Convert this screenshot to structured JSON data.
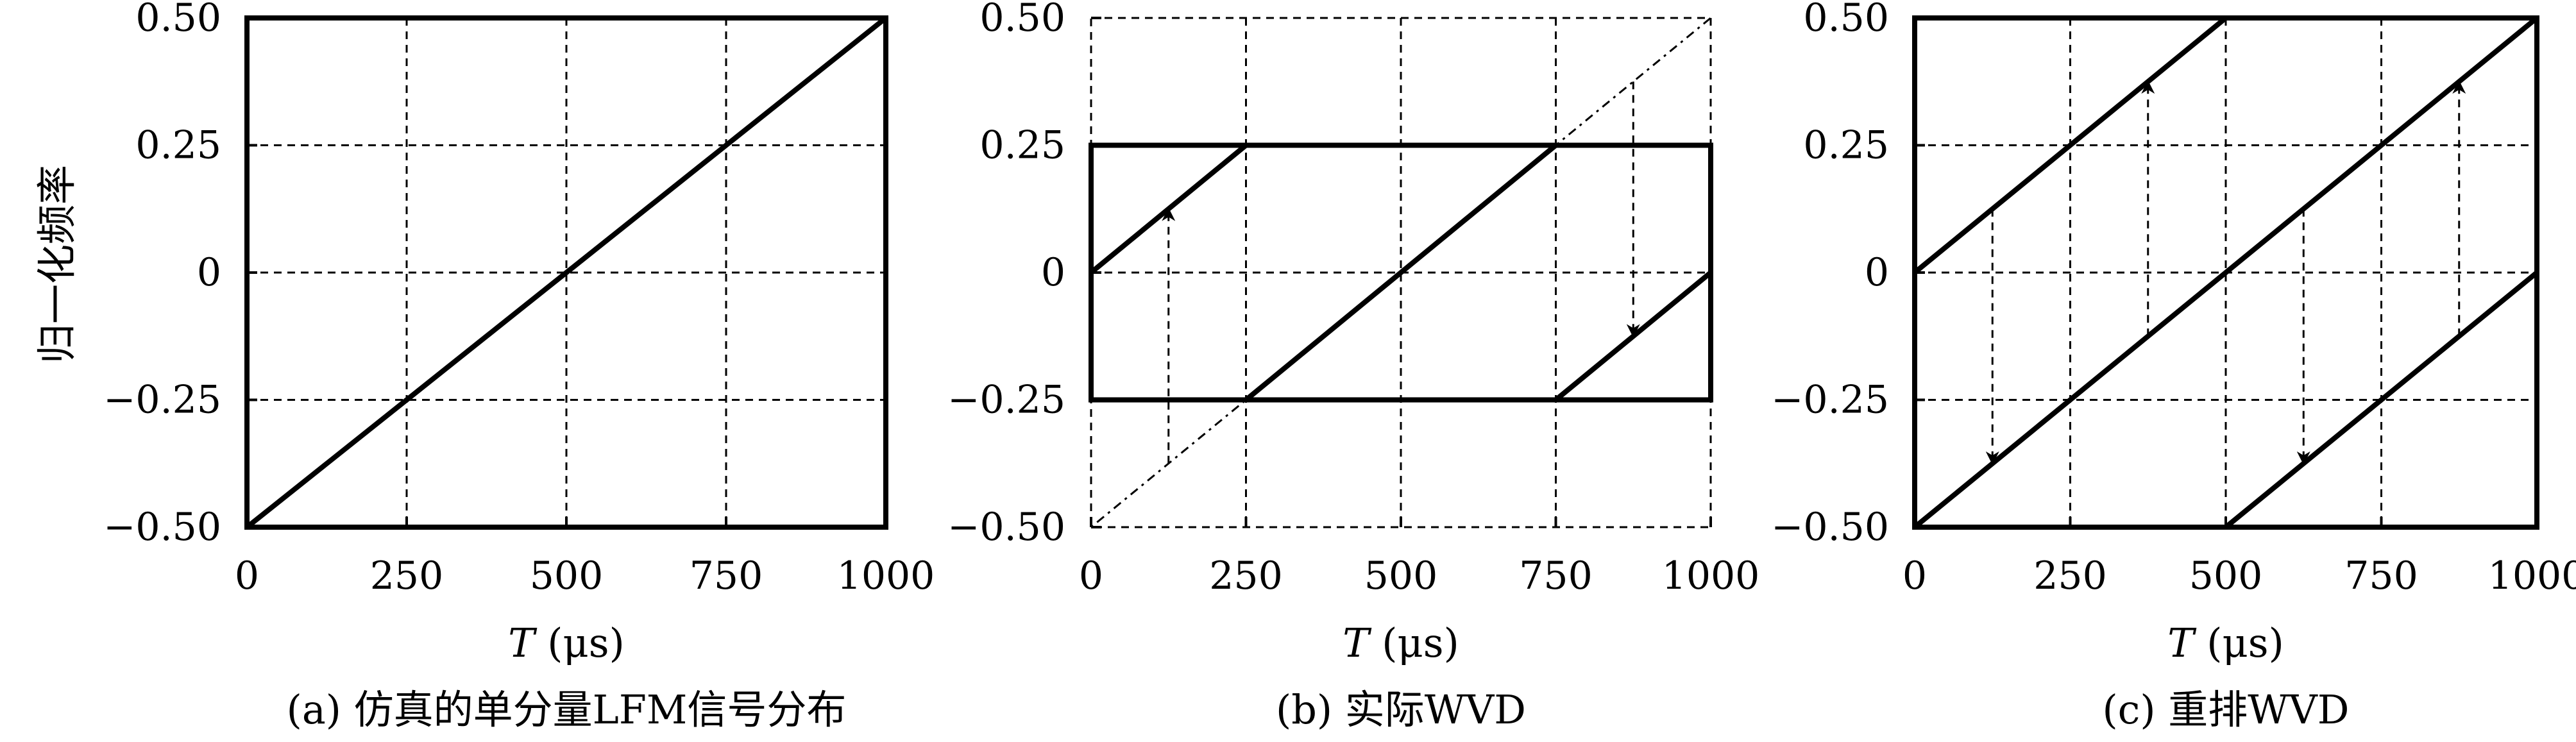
{
  "ylabel": "归一化频率",
  "chart_data": [
    {
      "type": "line",
      "caption": "(a) 仿真的单分量LFM信号分布",
      "xlabel_var": "T",
      "xlabel_unit": "(μs)",
      "xlim": [
        0,
        1000
      ],
      "ylim": [
        -0.5,
        0.5
      ],
      "x_ticks": [
        0,
        250,
        500,
        750,
        1000
      ],
      "x_tick_labels": [
        "0",
        "250",
        "500",
        "750",
        "1000"
      ],
      "y_ticks": [
        0.5,
        0.25,
        0,
        -0.25,
        -0.5
      ],
      "y_tick_labels": [
        "0.50",
        "0.25",
        "0",
        "-0.25",
        "-0.50"
      ],
      "grid": true,
      "bands": [],
      "series": [
        {
          "style": "solid",
          "points": [
            [
              0,
              -0.5
            ],
            [
              1000,
              0.5
            ]
          ]
        }
      ],
      "arrows": []
    },
    {
      "type": "line",
      "caption": "(b) 实际WVD",
      "xlabel_var": "T",
      "xlabel_unit": "(μs)",
      "xlim": [
        0,
        1000
      ],
      "ylim": [
        -0.5,
        0.5
      ],
      "x_ticks": [
        0,
        250,
        500,
        750,
        1000
      ],
      "x_tick_labels": [
        "0",
        "250",
        "500",
        "750",
        "1000"
      ],
      "y_ticks": [
        0.5,
        0.25,
        0,
        -0.25,
        -0.5
      ],
      "y_tick_labels": [
        "0.50",
        "0.25",
        "0",
        "-0.25",
        "-0.50"
      ],
      "grid": true,
      "frame_style": "dashed",
      "bands": [
        [
          -0.25,
          0.25
        ]
      ],
      "series": [
        {
          "style": "dotted",
          "points": [
            [
              0,
              -0.5
            ],
            [
              1000,
              0.5
            ]
          ]
        },
        {
          "style": "solid",
          "points": [
            [
              0,
              0
            ],
            [
              250,
              0.25
            ]
          ]
        },
        {
          "style": "solid",
          "points": [
            [
              250,
              -0.25
            ],
            [
              750,
              0.25
            ]
          ]
        },
        {
          "style": "solid",
          "points": [
            [
              750,
              -0.25
            ],
            [
              1000,
              0
            ]
          ]
        }
      ],
      "arrows": [
        {
          "x": 125,
          "from": -0.375,
          "to": 0.125
        },
        {
          "x": 875,
          "from": 0.375,
          "to": -0.125
        }
      ]
    },
    {
      "type": "line",
      "caption": "(c) 重排WVD",
      "xlabel_var": "T",
      "xlabel_unit": "(μs)",
      "xlim": [
        0,
        1000
      ],
      "ylim": [
        -0.5,
        0.5
      ],
      "x_ticks": [
        0,
        250,
        500,
        750,
        1000
      ],
      "x_tick_labels": [
        "0",
        "250",
        "500",
        "750",
        "1000"
      ],
      "y_ticks": [
        0.5,
        0.25,
        0,
        -0.25,
        -0.5
      ],
      "y_tick_labels": [
        "0.50",
        "0.25",
        "0",
        "-0.25",
        "-0.50"
      ],
      "grid": true,
      "bands": [],
      "series": [
        {
          "style": "solid",
          "points": [
            [
              0,
              0
            ],
            [
              500,
              0.5
            ]
          ]
        },
        {
          "style": "solid",
          "points": [
            [
              0,
              -0.5
            ],
            [
              1000,
              0.5
            ]
          ]
        },
        {
          "style": "solid",
          "points": [
            [
              500,
              -0.5
            ],
            [
              1000,
              0
            ]
          ]
        }
      ],
      "arrows": [
        {
          "x": 125,
          "from": 0.125,
          "to": -0.375
        },
        {
          "x": 375,
          "from": -0.125,
          "to": 0.375
        },
        {
          "x": 625,
          "from": 0.125,
          "to": -0.375
        },
        {
          "x": 875,
          "from": -0.125,
          "to": 0.375
        }
      ]
    }
  ]
}
